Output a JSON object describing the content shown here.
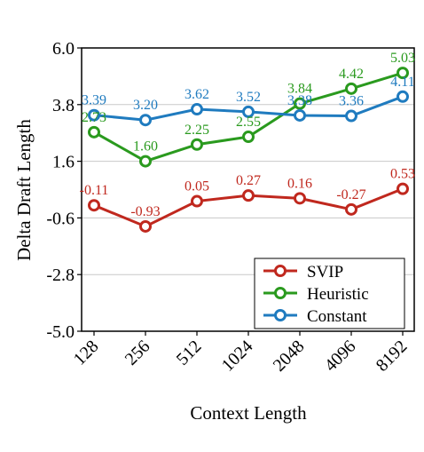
{
  "chart_data": {
    "type": "line",
    "title": "",
    "xlabel": "Context Length",
    "ylabel": "Delta Draft Length",
    "categories": [
      "128",
      "256",
      "512",
      "1024",
      "2048",
      "4096",
      "8192"
    ],
    "ylim": [
      -5.0,
      6.0
    ],
    "yticks": [
      "6.0",
      "3.8",
      "1.6",
      "-0.6",
      "-2.8",
      "-5.0"
    ],
    "ytick_values": [
      6.0,
      3.8,
      1.6,
      -0.6,
      -2.8,
      -5.0
    ],
    "grid": true,
    "legend_position": "bottom-right",
    "series": [
      {
        "name": "SVIP",
        "color": "#c0281e",
        "values": [
          -0.11,
          -0.93,
          0.05,
          0.27,
          0.16,
          -0.27,
          0.53
        ],
        "labels": [
          "-0.11",
          "-0.93",
          "0.05",
          "0.27",
          "0.16",
          "-0.27",
          "0.53"
        ]
      },
      {
        "name": "Heuristic",
        "color": "#2a9a1e",
        "values": [
          2.73,
          1.6,
          2.25,
          2.55,
          3.84,
          4.42,
          5.03
        ],
        "labels": [
          "2.73",
          "1.60",
          "2.25",
          "2.55",
          "3.84",
          "4.42",
          "5.03"
        ]
      },
      {
        "name": "Constant",
        "color": "#1f7bbf",
        "values": [
          3.39,
          3.2,
          3.62,
          3.52,
          3.38,
          3.36,
          4.11
        ],
        "labels": [
          "3.39",
          "3.20",
          "3.62",
          "3.52",
          "3.38",
          "3.36",
          "4.11"
        ]
      }
    ]
  }
}
